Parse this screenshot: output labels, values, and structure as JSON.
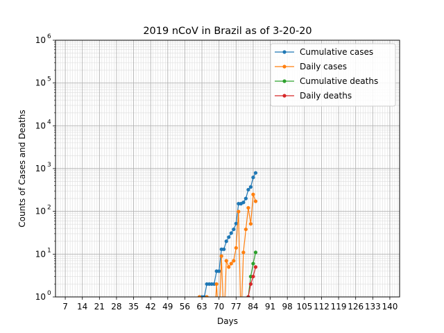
{
  "chart_data": {
    "type": "line",
    "title": "2019 nCoV in Brazil as of 3-20-20",
    "xlabel": "Days",
    "ylabel": "Counts of Cases and Deaths",
    "xlim": [
      3,
      144
    ],
    "ylim": [
      1,
      1000000
    ],
    "yscale": "log",
    "grid": true,
    "legend_position": "top-right",
    "x_ticks": [
      7,
      14,
      21,
      28,
      35,
      42,
      49,
      56,
      63,
      70,
      77,
      84,
      91,
      98,
      105,
      112,
      119,
      126,
      133,
      140
    ],
    "x_tick_labels": [
      "7",
      "14",
      "21",
      "28",
      "35",
      "42",
      "49",
      "56",
      "63",
      "70",
      "77",
      "84",
      "91",
      "98",
      "105",
      "112",
      "119",
      "126",
      "133",
      "140"
    ],
    "y_ticks": [
      1,
      10,
      100,
      1000,
      10000,
      100000,
      1000000
    ],
    "y_tick_labels": [
      {
        "base": "10",
        "exp": "0"
      },
      {
        "base": "10",
        "exp": "1"
      },
      {
        "base": "10",
        "exp": "2"
      },
      {
        "base": "10",
        "exp": "3"
      },
      {
        "base": "10",
        "exp": "4"
      },
      {
        "base": "10",
        "exp": "5"
      },
      {
        "base": "10",
        "exp": "6"
      }
    ],
    "series": [
      {
        "name": "Cumulative cases",
        "color": "#1f77b4",
        "x": [
          62,
          63,
          64,
          65,
          66,
          67,
          68,
          69,
          70,
          71,
          72,
          73,
          74,
          75,
          76,
          77,
          78,
          79,
          80,
          81,
          82,
          83,
          84,
          85
        ],
        "y": [
          1,
          1,
          1,
          2,
          2,
          2,
          2,
          4,
          4,
          13,
          13,
          20,
          25,
          31,
          38,
          52,
          151,
          151,
          162,
          200,
          321,
          372,
          621,
          793
        ]
      },
      {
        "name": "Daily cases",
        "color": "#ff7f0e",
        "x": [
          62,
          63,
          64,
          65,
          66,
          67,
          68,
          69,
          70,
          71,
          72,
          73,
          74,
          75,
          76,
          77,
          78,
          79,
          80,
          81,
          82,
          83,
          84,
          85
        ],
        "y": [
          1,
          0,
          0,
          1,
          0,
          0,
          0,
          2,
          0,
          9,
          0,
          7,
          5,
          6,
          7,
          14,
          99,
          0,
          11,
          38,
          121,
          51,
          249,
          172
        ]
      },
      {
        "name": "Cumulative deaths",
        "color": "#2ca02c",
        "x": [
          82,
          83,
          84,
          85
        ],
        "y": [
          1,
          3,
          6,
          11
        ]
      },
      {
        "name": "Daily deaths",
        "color": "#d62728",
        "x": [
          82,
          83,
          84,
          85
        ],
        "y": [
          1,
          2,
          3,
          5
        ]
      }
    ]
  }
}
